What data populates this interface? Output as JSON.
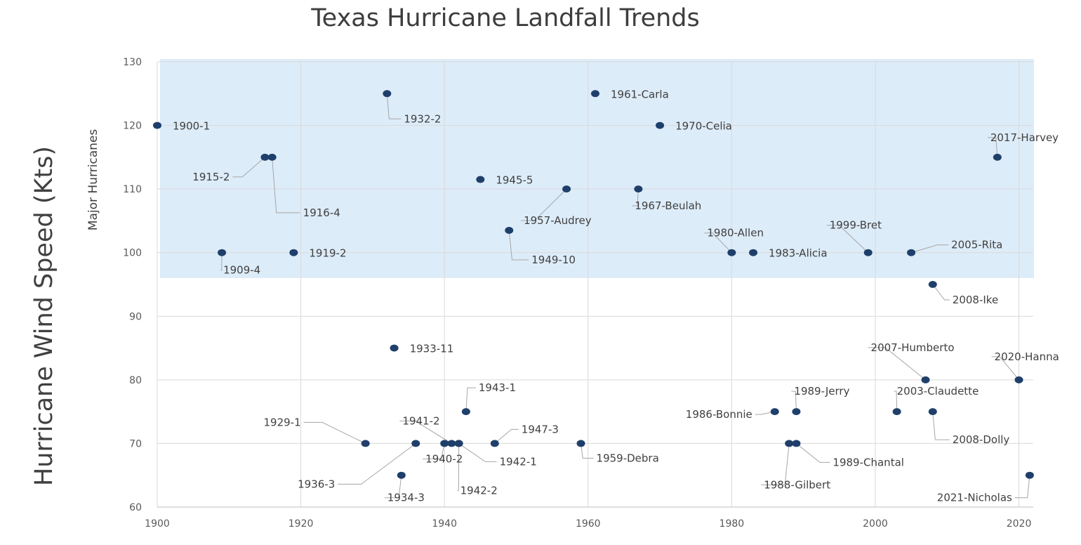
{
  "chart_data": {
    "type": "scatter",
    "title": "Texas Hurricane Landfall Trends",
    "xlabel": "",
    "ylabel": "Hurricane Wind Speed (Kts)",
    "xlim": [
      1900,
      2022
    ],
    "ylim": [
      60,
      130
    ],
    "x_ticks": [
      1900,
      1920,
      1940,
      1960,
      1980,
      2000,
      2020
    ],
    "y_ticks": [
      60,
      70,
      80,
      90,
      100,
      110,
      120,
      130
    ],
    "grid": true,
    "band": {
      "label": "Major Hurricanes",
      "y_min": 96,
      "y_max": 130,
      "color": "#ddecf9"
    },
    "marker_color": "#1f3f6b",
    "points": [
      {
        "x": 1900,
        "y": 120,
        "label": "1900-1"
      },
      {
        "x": 1909,
        "y": 100,
        "label": "1909-4"
      },
      {
        "x": 1915,
        "y": 115,
        "label": "1915-2"
      },
      {
        "x": 1916,
        "y": 115,
        "label": "1916-4"
      },
      {
        "x": 1919,
        "y": 100,
        "label": "1919-2"
      },
      {
        "x": 1929,
        "y": 70,
        "label": "1929-1"
      },
      {
        "x": 1932,
        "y": 125,
        "label": "1932-2"
      },
      {
        "x": 1933,
        "y": 85,
        "label": "1933-11"
      },
      {
        "x": 1934,
        "y": 65,
        "label": "1934-3"
      },
      {
        "x": 1936,
        "y": 70,
        "label": "1936-3"
      },
      {
        "x": 1940,
        "y": 70,
        "label": "1940-2"
      },
      {
        "x": 1941,
        "y": 70,
        "label": "1941-2"
      },
      {
        "x": 1942,
        "y": 70,
        "label": "1942-1"
      },
      {
        "x": 1942,
        "y": 70,
        "label": "1942-2"
      },
      {
        "x": 1943,
        "y": 75,
        "label": "1943-1"
      },
      {
        "x": 1945,
        "y": 111.5,
        "label": "1945-5"
      },
      {
        "x": 1947,
        "y": 70,
        "label": "1947-3"
      },
      {
        "x": 1949,
        "y": 103.5,
        "label": "1949-10"
      },
      {
        "x": 1957,
        "y": 110,
        "label": "1957-Audrey"
      },
      {
        "x": 1959,
        "y": 70,
        "label": "1959-Debra"
      },
      {
        "x": 1961,
        "y": 125,
        "label": "1961-Carla"
      },
      {
        "x": 1967,
        "y": 110,
        "label": "1967-Beulah"
      },
      {
        "x": 1970,
        "y": 120,
        "label": "1970-Celia"
      },
      {
        "x": 1980,
        "y": 100,
        "label": "1980-Allen"
      },
      {
        "x": 1983,
        "y": 100,
        "label": "1983-Alicia"
      },
      {
        "x": 1986,
        "y": 75,
        "label": "1986-Bonnie"
      },
      {
        "x": 1988,
        "y": 70,
        "label": "1988-Gilbert"
      },
      {
        "x": 1989,
        "y": 75,
        "label": "1989-Jerry"
      },
      {
        "x": 1989,
        "y": 70,
        "label": "1989-Chantal"
      },
      {
        "x": 1999,
        "y": 100,
        "label": "1999-Bret"
      },
      {
        "x": 2003,
        "y": 75,
        "label": "2003-Claudette"
      },
      {
        "x": 2005,
        "y": 100,
        "label": "2005-Rita"
      },
      {
        "x": 2007,
        "y": 80,
        "label": "2007-Humberto"
      },
      {
        "x": 2008,
        "y": 95,
        "label": "2008-Ike"
      },
      {
        "x": 2008,
        "y": 75,
        "label": "2008-Dolly"
      },
      {
        "x": 2017,
        "y": 115,
        "label": "2017-Harvey"
      },
      {
        "x": 2020,
        "y": 80,
        "label": "2020-Hanna"
      },
      {
        "x": 2021.5,
        "y": 65,
        "label": "2021-Nicholas"
      }
    ]
  }
}
